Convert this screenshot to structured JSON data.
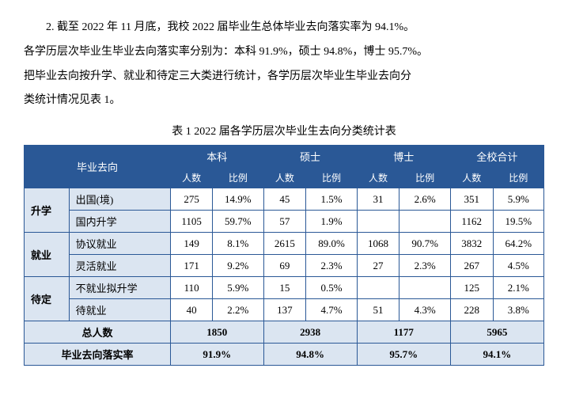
{
  "paragraph": {
    "line1": "2. 截至 2022 年 11 月底，我校 2022 届毕业生总体毕业去向落实率为 94.1%。",
    "line2": "各学历层次毕业生毕业去向落实率分别为：本科 91.9%，硕士 94.8%，博士 95.7%。",
    "line3": "把毕业去向按升学、就业和待定三大类进行统计，各学历层次毕业生毕业去向分",
    "line4": "类统计情况见表 1。"
  },
  "caption": "表 1  2022 届各学历层次毕业生去向分类统计表",
  "style": {
    "header_bg": "#2a5896",
    "header_color": "#ffffff",
    "body_bg": "#dbe5f1",
    "border_color": "#2a5896",
    "font_family": "SimSun"
  },
  "columns": {
    "main": "毕业去向",
    "c1": "本科",
    "c2": "硕士",
    "c3": "博士",
    "c4": "全校合计",
    "sub_count": "人数",
    "sub_pct": "比例"
  },
  "groups": [
    {
      "name": "升学",
      "rows": [
        {
          "label": "出国(境)",
          "c1n": "275",
          "c1p": "14.9%",
          "c2n": "45",
          "c2p": "1.5%",
          "c3n": "31",
          "c3p": "2.6%",
          "c4n": "351",
          "c4p": "5.9%"
        },
        {
          "label": "国内升学",
          "c1n": "1105",
          "c1p": "59.7%",
          "c2n": "57",
          "c2p": "1.9%",
          "c3n": "",
          "c3p": "",
          "c4n": "1162",
          "c4p": "19.5%"
        }
      ]
    },
    {
      "name": "就业",
      "rows": [
        {
          "label": "协议就业",
          "c1n": "149",
          "c1p": "8.1%",
          "c2n": "2615",
          "c2p": "89.0%",
          "c3n": "1068",
          "c3p": "90.7%",
          "c4n": "3832",
          "c4p": "64.2%"
        },
        {
          "label": "灵活就业",
          "c1n": "171",
          "c1p": "9.2%",
          "c2n": "69",
          "c2p": "2.3%",
          "c3n": "27",
          "c3p": "2.3%",
          "c4n": "267",
          "c4p": "4.5%"
        }
      ]
    },
    {
      "name": "待定",
      "rows": [
        {
          "label": "不就业拟升学",
          "c1n": "110",
          "c1p": "5.9%",
          "c2n": "15",
          "c2p": "0.5%",
          "c3n": "",
          "c3p": "",
          "c4n": "125",
          "c4p": "2.1%"
        },
        {
          "label": "待就业",
          "c1n": "40",
          "c1p": "2.2%",
          "c2n": "137",
          "c2p": "4.7%",
          "c3n": "51",
          "c3p": "4.3%",
          "c4n": "228",
          "c4p": "3.8%"
        }
      ]
    }
  ],
  "total": {
    "label": "总人数",
    "c1": "1850",
    "c2": "2938",
    "c3": "1177",
    "c4": "5965"
  },
  "rate": {
    "label": "毕业去向落实率",
    "c1": "91.9%",
    "c2": "94.8%",
    "c3": "95.7%",
    "c4": "94.1%"
  }
}
